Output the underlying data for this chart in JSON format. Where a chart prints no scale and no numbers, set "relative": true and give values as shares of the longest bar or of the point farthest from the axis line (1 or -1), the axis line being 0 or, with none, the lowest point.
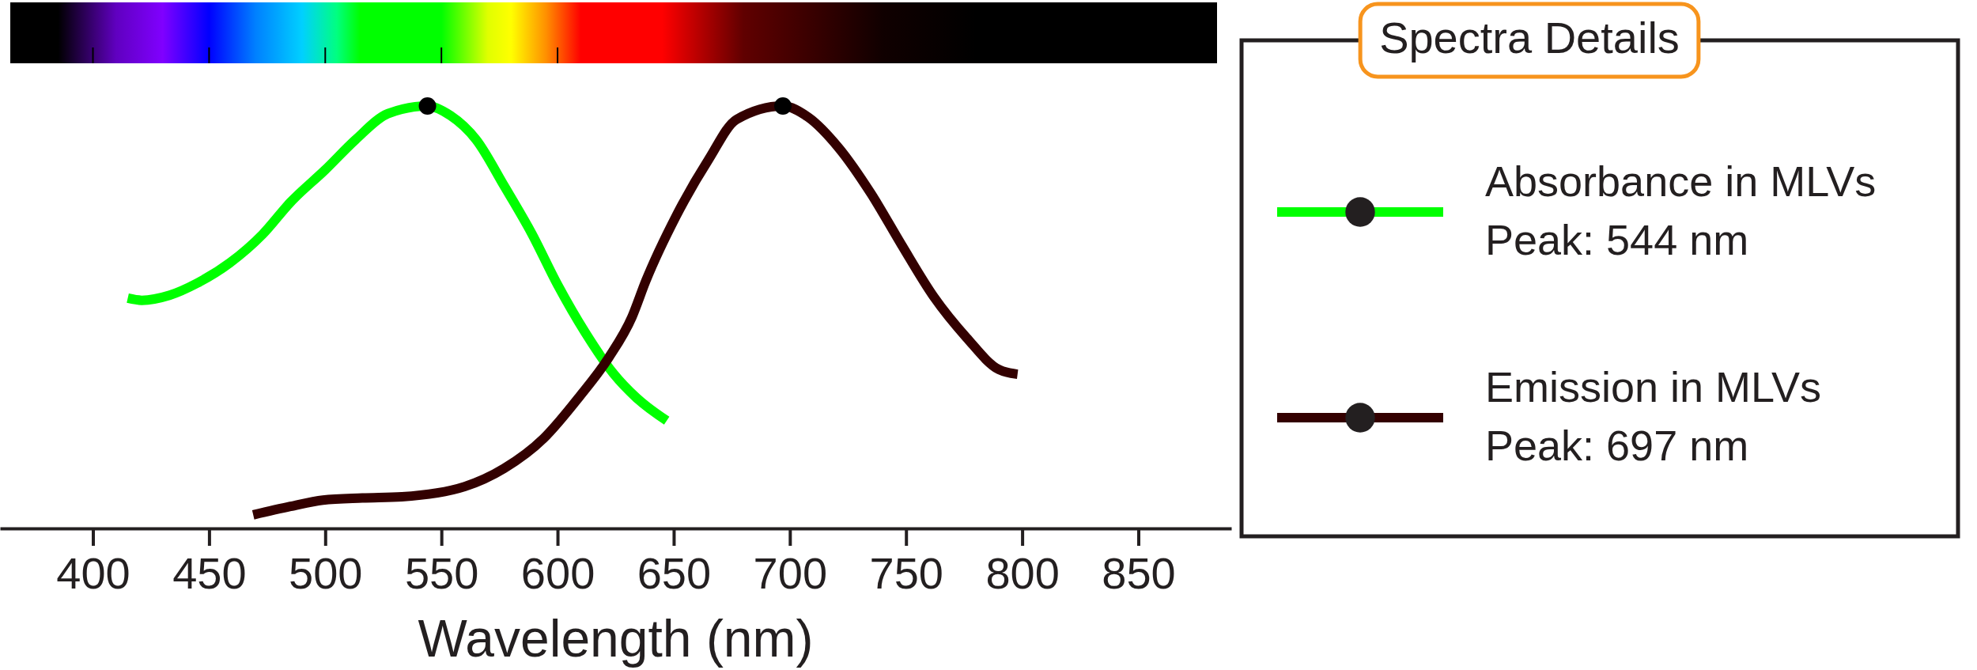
{
  "chart_data": {
    "type": "line",
    "relative": true,
    "xlabel": "Wavelength (nm)",
    "xlim": [
      360,
      890
    ],
    "xticks": [
      400,
      450,
      500,
      550,
      600,
      650,
      700,
      750,
      800,
      850
    ],
    "legend": "right",
    "legend_title": "Spectra Details",
    "line_style": "solid",
    "series": [
      {
        "name": "Absorbance in MLVs\nPeak: 544 nm",
        "color": "#00ff00",
        "x": [
          415,
          421,
          433,
          445,
          459,
          473,
          485,
          500,
          513,
          527,
          544,
          554,
          565,
          577,
          589,
          600,
          612,
          624,
          634,
          647
        ],
        "values": [
          0.545,
          0.54,
          0.552,
          0.581,
          0.629,
          0.696,
          0.772,
          0.849,
          0.92,
          0.982,
          1,
          0.977,
          0.92,
          0.811,
          0.697,
          0.577,
          0.463,
          0.367,
          0.309,
          0.255
        ]
      },
      {
        "name": "Emission in MLVs\nPeak: 697 nm",
        "color": "#330000",
        "x": [
          469,
          485,
          499,
          516,
          533,
          560,
          577,
          594,
          609,
          622,
          632,
          638,
          651,
          665,
          677,
          697,
          708,
          721,
          735,
          748,
          762,
          776,
          790,
          798
        ],
        "values": [
          0.032,
          0.052,
          0.067,
          0.072,
          0.075,
          0.099,
          0.142,
          0.213,
          0.309,
          0.404,
          0.5,
          0.586,
          0.739,
          0.873,
          0.968,
          1,
          0.973,
          0.901,
          0.792,
          0.672,
          0.548,
          0.452,
          0.376,
          0.365
        ]
      },
      {
        "type": "scatter",
        "marker": "circle",
        "color": "#000000",
        "x": [
          544,
          697
        ],
        "values": [
          1,
          1
        ]
      }
    ]
  }
}
